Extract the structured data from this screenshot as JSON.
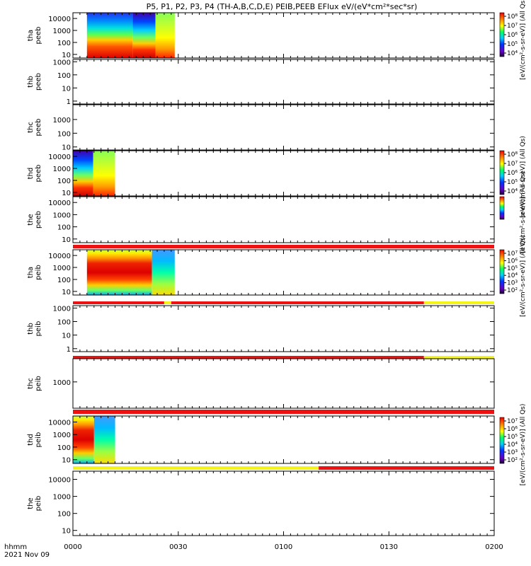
{
  "title": "P5, P1, P2, P3, P4 (TH-A,B,C,D,E) PEIB,PEEB EFlux eV/(eV*cm²*sec*sr)",
  "colors": {
    "flag_red": "#ee1111",
    "flag_yellow": "#f4f41a",
    "frame": "#000000"
  },
  "chart_data": {
    "type": "heatmap",
    "x_axis": {
      "range": [
        "0000",
        "0200"
      ],
      "ticks": [
        "0000",
        "0030",
        "0100",
        "0130",
        "0200"
      ],
      "label_line1": "hhmm",
      "label_line2": "2021 Nov 09"
    },
    "panels": [
      {
        "id": "tha-peeb",
        "ylabel": [
          "tha",
          "peeb"
        ],
        "yticks": [
          "10000",
          "1000",
          "100",
          "10"
        ],
        "ylog_range": [
          5,
          30000
        ],
        "data_span_minutes": [
          4,
          29
        ],
        "colorbar": {
          "ticks": [
            "10⁸",
            "10⁷",
            "10⁶",
            "10⁵",
            "10⁴"
          ],
          "label": "[eV/(cm²-s-sr-eV)] (All Qs)"
        }
      },
      {
        "id": "thb-peeb",
        "ylabel": [
          "thb",
          "peeb"
        ],
        "yticks": [
          "1000",
          "100",
          "10",
          "1"
        ],
        "ylog_range": [
          0.6,
          1500
        ]
      },
      {
        "id": "thc-peeb",
        "ylabel": [
          "thc",
          "peeb"
        ],
        "yticks": [
          "1000",
          "100",
          "10"
        ],
        "ylog_range": [
          6,
          12000
        ]
      },
      {
        "id": "thd-peeb",
        "ylabel": [
          "thd",
          "peeb"
        ],
        "yticks": [
          "10000",
          "1000",
          "100",
          "10"
        ],
        "ylog_range": [
          5,
          30000
        ],
        "data_span_minutes": [
          0,
          12
        ],
        "colorbar": {
          "ticks": [
            "10⁸",
            "10⁷",
            "10⁶",
            "10⁵",
            "10⁴"
          ],
          "label": "[eV/(cm²-s-sr-eV)] (All Qs)"
        }
      },
      {
        "id": "the-peeb",
        "ylabel": [
          "the",
          "peeb"
        ],
        "yticks": [
          "10000",
          "1000",
          "100",
          "10"
        ],
        "ylog_range": [
          5,
          30000
        ],
        "colorbar": {
          "ticks": [],
          "label": "[eV/(cm²-s-sr-eV)] (All Qs)"
        }
      },
      {
        "id": "tha-peib",
        "ylabel": [
          "tha",
          "peib"
        ],
        "yticks": [
          "10000",
          "1000",
          "100",
          "10"
        ],
        "ylog_range": [
          5,
          30000
        ],
        "data_span_minutes": [
          4,
          29
        ],
        "colorbar": {
          "ticks": [
            "10⁷",
            "10⁶",
            "10⁵",
            "10⁴",
            "10³",
            "10²"
          ],
          "label": "[eV/(cm²-s-sr-eV)] (All Qs)"
        }
      },
      {
        "id": "thb-peib",
        "ylabel": [
          "thb",
          "peib"
        ],
        "yticks": [
          "1000",
          "100",
          "10",
          "1"
        ],
        "ylog_range": [
          0.6,
          1500
        ]
      },
      {
        "id": "thc-peib",
        "ylabel": [
          "thc",
          "peib"
        ],
        "yticks": [
          "1000"
        ],
        "ylog_range": [
          60,
          12000
        ]
      },
      {
        "id": "thd-peib",
        "ylabel": [
          "thd",
          "peib"
        ],
        "yticks": [
          "10000",
          "1000",
          "100",
          "10"
        ],
        "ylog_range": [
          5,
          30000
        ],
        "data_span_minutes": [
          0,
          12
        ],
        "colorbar": {
          "ticks": [
            "10⁷",
            "10⁶",
            "10⁵",
            "10⁴",
            "10³",
            "10²"
          ],
          "label": "[eV/(cm²-s-sr-eV)] (All Qs)"
        }
      },
      {
        "id": "the-peib",
        "ylabel": [
          "the",
          "peib"
        ],
        "yticks": [
          "10000",
          "1000",
          "100",
          "10"
        ],
        "ylog_range": [
          5,
          30000
        ]
      }
    ],
    "flag_bars": [
      {
        "after_panel": "the-peeb",
        "segments": [
          {
            "from": 0,
            "to": 120,
            "color": "red"
          }
        ]
      },
      {
        "after_panel": "tha-peib",
        "segments": [
          {
            "from": 0,
            "to": 26,
            "color": "red"
          },
          {
            "from": 26,
            "to": 28,
            "color": "yellow"
          },
          {
            "from": 28,
            "to": 100,
            "color": "red"
          },
          {
            "from": 100,
            "to": 120,
            "color": "yellow"
          }
        ]
      },
      {
        "after_panel": "thb-peib",
        "segments": [
          {
            "from": 0,
            "to": 100,
            "color": "red"
          },
          {
            "from": 100,
            "to": 120,
            "color": "yellow"
          }
        ]
      },
      {
        "after_panel": "thc-peib",
        "segments": [
          {
            "from": 0,
            "to": 120,
            "color": "red"
          }
        ]
      },
      {
        "after_panel": "thd-peib",
        "segments": [
          {
            "from": 0,
            "to": 70,
            "color": "yellow"
          },
          {
            "from": 70,
            "to": 120,
            "color": "red"
          }
        ]
      }
    ]
  }
}
